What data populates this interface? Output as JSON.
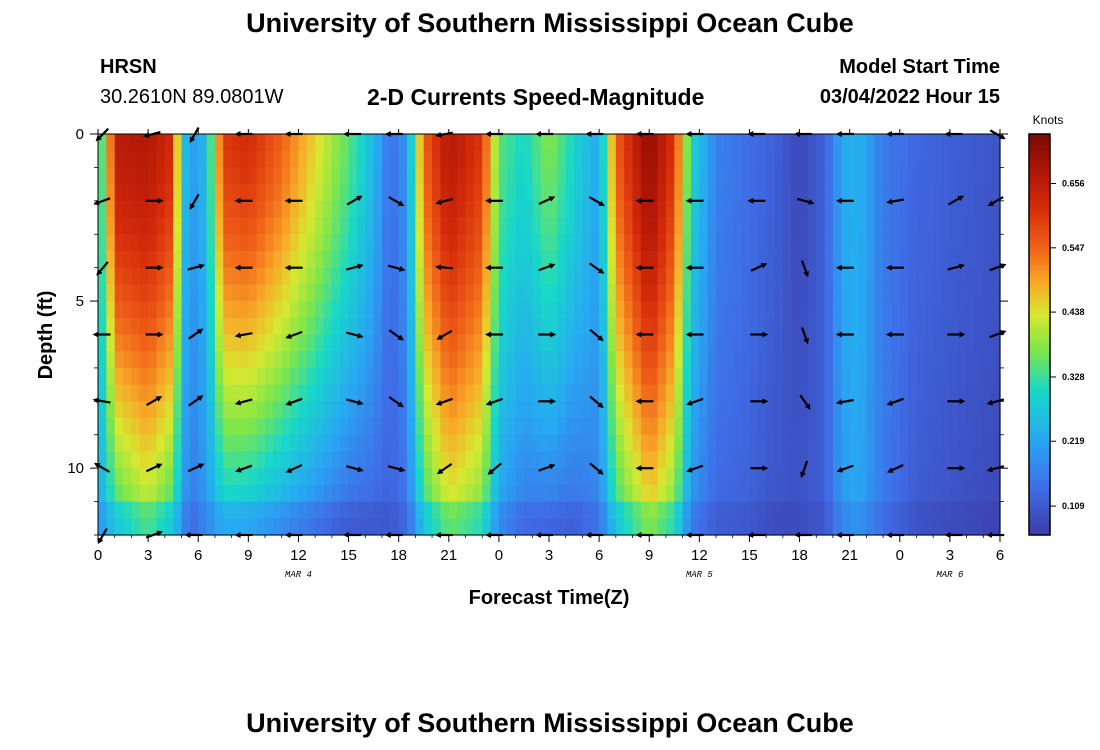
{
  "header": {
    "title": "University of Southern Mississippi Ocean Cube",
    "station": "HRSN",
    "coords": "30.2610N  89.0801W",
    "subtitle": "2-D Currents Speed-Magnitude",
    "model_start_label": "Model Start Time",
    "model_start_value": "03/04/2022 Hour 15"
  },
  "footer": {
    "title": "University of Southern Mississippi Ocean Cube"
  },
  "chart_data": {
    "type": "heatmap",
    "xlabel": "Forecast Time(Z)",
    "ylabel": "Depth (ft)",
    "x_range_hours": [
      0,
      54
    ],
    "y_range_ft": [
      0,
      12
    ],
    "x_tick_labels": [
      "0",
      "3",
      "6",
      "9",
      "12",
      "15",
      "18",
      "21",
      "0",
      "3",
      "6",
      "9",
      "12",
      "15",
      "18",
      "21",
      "0",
      "3",
      "6"
    ],
    "y_tick_values": [
      0,
      5,
      10
    ],
    "y_tick_labels": [
      "0",
      "5",
      "10"
    ],
    "date_labels": [
      {
        "text": "MAR 4",
        "hour": 12
      },
      {
        "text": "MAR 5",
        "hour": 36
      },
      {
        "text": "MAR 6",
        "hour": 51
      }
    ],
    "colorbar": {
      "title": "Knots",
      "min": 0.06,
      "max": 0.74,
      "tick_values": [
        0.109,
        0.219,
        0.328,
        0.438,
        0.547,
        0.656
      ],
      "tick_labels": [
        "0.109",
        "0.219",
        "0.328",
        "0.438",
        "0.547",
        "0.656"
      ]
    },
    "speed_profile_knots": [
      {
        "hour": 0,
        "top": 0.3,
        "bottom": 0.22
      },
      {
        "hour": 0.5,
        "top": 0.4,
        "bottom": 0.25
      },
      {
        "hour": 1,
        "top": 0.66,
        "bottom": 0.3
      },
      {
        "hour": 3,
        "top": 0.67,
        "bottom": 0.38
      },
      {
        "hour": 4.5,
        "top": 0.62,
        "bottom": 0.3
      },
      {
        "hour": 5,
        "top": 0.3,
        "bottom": 0.22
      },
      {
        "hour": 5.5,
        "top": 0.2,
        "bottom": 0.15
      },
      {
        "hour": 6.5,
        "top": 0.25,
        "bottom": 0.2
      },
      {
        "hour": 7.5,
        "top": 0.6,
        "bottom": 0.25
      },
      {
        "hour": 9,
        "top": 0.62,
        "bottom": 0.24
      },
      {
        "hour": 11,
        "top": 0.55,
        "bottom": 0.2
      },
      {
        "hour": 13,
        "top": 0.45,
        "bottom": 0.16
      },
      {
        "hour": 15,
        "top": 0.35,
        "bottom": 0.12
      },
      {
        "hour": 16.5,
        "top": 0.25,
        "bottom": 0.12
      },
      {
        "hour": 17.5,
        "top": 0.14,
        "bottom": 0.12
      },
      {
        "hour": 18.5,
        "top": 0.2,
        "bottom": 0.15
      },
      {
        "hour": 19.5,
        "top": 0.55,
        "bottom": 0.3
      },
      {
        "hour": 21,
        "top": 0.67,
        "bottom": 0.4
      },
      {
        "hour": 23,
        "top": 0.6,
        "bottom": 0.35
      },
      {
        "hour": 24,
        "top": 0.35,
        "bottom": 0.2
      },
      {
        "hour": 25.5,
        "top": 0.3,
        "bottom": 0.15
      },
      {
        "hour": 27,
        "top": 0.38,
        "bottom": 0.14
      },
      {
        "hour": 28.5,
        "top": 0.3,
        "bottom": 0.13
      },
      {
        "hour": 30,
        "top": 0.22,
        "bottom": 0.17
      },
      {
        "hour": 31,
        "top": 0.55,
        "bottom": 0.3
      },
      {
        "hour": 33,
        "top": 0.72,
        "bottom": 0.42
      },
      {
        "hour": 34.5,
        "top": 0.6,
        "bottom": 0.35
      },
      {
        "hour": 35.5,
        "top": 0.3,
        "bottom": 0.18
      },
      {
        "hour": 37,
        "top": 0.17,
        "bottom": 0.13
      },
      {
        "hour": 39,
        "top": 0.14,
        "bottom": 0.12
      },
      {
        "hour": 40.5,
        "top": 0.12,
        "bottom": 0.1
      },
      {
        "hour": 42,
        "top": 0.08,
        "bottom": 0.1
      },
      {
        "hour": 43.5,
        "top": 0.12,
        "bottom": 0.12
      },
      {
        "hour": 44.5,
        "top": 0.22,
        "bottom": 0.2
      },
      {
        "hour": 45.5,
        "top": 0.24,
        "bottom": 0.22
      },
      {
        "hour": 47,
        "top": 0.16,
        "bottom": 0.16
      },
      {
        "hour": 49,
        "top": 0.13,
        "bottom": 0.11
      },
      {
        "hour": 54,
        "top": 0.1,
        "bottom": 0.08
      }
    ],
    "vector_hours": [
      0.3,
      3.3,
      5.8,
      8.8,
      11.8,
      15.3,
      17.8,
      20.8,
      23.8,
      26.8,
      29.8,
      32.8,
      35.8,
      39.5,
      42.3,
      44.8,
      47.8,
      51.3,
      53.8
    ],
    "vector_depths_ft": [
      0,
      2,
      4,
      6,
      8,
      10,
      12
    ],
    "vector_directions_deg": [
      [
        -135,
        -160,
        -130,
        180,
        170,
        150,
        -120
      ],
      [
        -165,
        0,
        0,
        0,
        30,
        25,
        20
      ],
      [
        -120,
        -120,
        15,
        35,
        35,
        25,
        180
      ],
      [
        180,
        180,
        180,
        190,
        195,
        200,
        180
      ],
      [
        180,
        180,
        180,
        200,
        200,
        205,
        180
      ],
      [
        180,
        30,
        15,
        -15,
        -15,
        -15,
        180
      ],
      [
        180,
        -30,
        -15,
        -35,
        -35,
        -15,
        180
      ],
      [
        -170,
        -165,
        175,
        210,
        200,
        215,
        180
      ],
      [
        180,
        180,
        180,
        180,
        200,
        220,
        180
      ],
      [
        180,
        25,
        20,
        0,
        0,
        20,
        180
      ],
      [
        180,
        -30,
        -35,
        -40,
        -40,
        -40,
        180
      ],
      [
        180,
        180,
        180,
        180,
        180,
        180,
        180
      ],
      [
        180,
        180,
        180,
        180,
        200,
        200,
        180
      ],
      [
        180,
        180,
        25,
        0,
        0,
        0,
        180
      ],
      [
        180,
        -15,
        -70,
        -70,
        -55,
        -110,
        180
      ],
      [
        180,
        180,
        180,
        180,
        190,
        200,
        180
      ],
      [
        180,
        190,
        180,
        180,
        200,
        205,
        180
      ],
      [
        180,
        30,
        15,
        0,
        0,
        0,
        180
      ],
      [
        -30,
        -150,
        20,
        20,
        -165,
        -165,
        180
      ]
    ]
  }
}
